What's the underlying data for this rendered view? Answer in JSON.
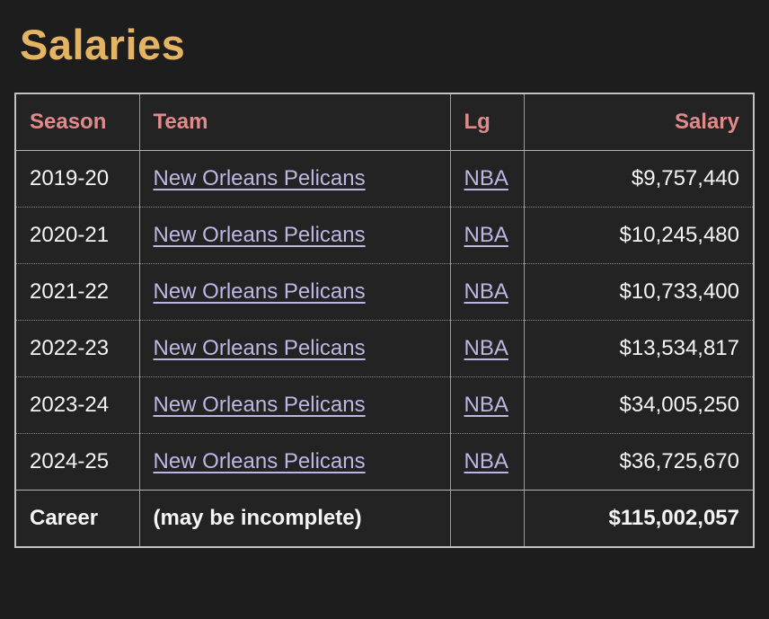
{
  "page": {
    "title": "Salaries"
  },
  "colors": {
    "background": "#1d1d1d",
    "title_gold": "#e4b363",
    "header_pink": "#e18a8a",
    "link_lavender": "#bdb7e4",
    "body_text": "#f5f5f5",
    "table_border": "#c2c2c2"
  },
  "table": {
    "headers": {
      "season": "Season",
      "team": "Team",
      "lg": "Lg",
      "salary": "Salary"
    },
    "rows": [
      {
        "season": "2019-20",
        "team": "New Orleans Pelicans",
        "lg": "NBA",
        "salary": "$9,757,440"
      },
      {
        "season": "2020-21",
        "team": "New Orleans Pelicans",
        "lg": "NBA",
        "salary": "$10,245,480"
      },
      {
        "season": "2021-22",
        "team": "New Orleans Pelicans",
        "lg": "NBA",
        "salary": "$10,733,400"
      },
      {
        "season": "2022-23",
        "team": "New Orleans Pelicans",
        "lg": "NBA",
        "salary": "$13,534,817"
      },
      {
        "season": "2023-24",
        "team": "New Orleans Pelicans",
        "lg": "NBA",
        "salary": "$34,005,250"
      },
      {
        "season": "2024-25",
        "team": "New Orleans Pelicans",
        "lg": "NBA",
        "salary": "$36,725,670"
      }
    ],
    "footer": {
      "label": "Career",
      "note": "(may be incomplete)",
      "lg": "",
      "salary": "$115,002,057"
    }
  }
}
